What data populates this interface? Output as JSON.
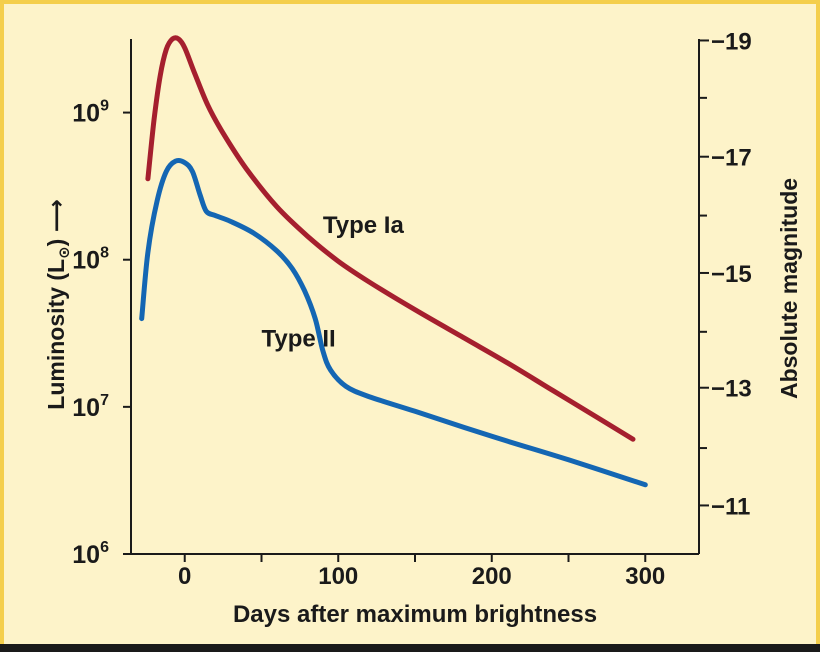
{
  "chart_data": {
    "type": "line",
    "xlabel": "Days after maximum brightness",
    "ylabel": "Luminosity (L",
    "ylabel_arrow": "⟶",
    "y2label": "Absolute magnitude",
    "sun_symbol": "⊙",
    "xlim": [
      -35,
      335
    ],
    "ylim_log10": [
      6,
      9.5
    ],
    "y_scale": "log",
    "grid": false,
    "x_ticks": [
      {
        "value": 0,
        "label": "0"
      },
      {
        "value": 100,
        "label": "100"
      },
      {
        "value": 200,
        "label": "200"
      },
      {
        "value": 300,
        "label": "300"
      }
    ],
    "x_minor_ticks": [
      50,
      150,
      250
    ],
    "y_ticks": [
      {
        "value": 1000000,
        "base": "10",
        "exp": "6"
      },
      {
        "value": 10000000,
        "base": "10",
        "exp": "7"
      },
      {
        "value": 100000000,
        "base": "10",
        "exp": "8"
      },
      {
        "value": 1000000000,
        "base": "10",
        "exp": "9"
      }
    ],
    "y2_ticks": [
      {
        "log10L": 9.49,
        "label": "−19"
      },
      {
        "log10L": 8.7,
        "label": "−17"
      },
      {
        "log10L": 7.91,
        "label": "−15"
      },
      {
        "log10L": 7.13,
        "label": "−13"
      },
      {
        "log10L": 6.33,
        "label": "−11"
      }
    ],
    "y2_minor_ticks": [
      9.1,
      8.3,
      7.51,
      6.72
    ],
    "series": [
      {
        "name": "Type Ia",
        "color": "#a51f2e",
        "label_at": {
          "x": 90,
          "log10L": 8.18
        },
        "points": [
          [
            -24,
            8.55
          ],
          [
            -20,
            8.95
          ],
          [
            -16,
            9.25
          ],
          [
            -12,
            9.43
          ],
          [
            -8,
            9.5
          ],
          [
            -4,
            9.5
          ],
          [
            0,
            9.44
          ],
          [
            6,
            9.28
          ],
          [
            15,
            9.05
          ],
          [
            25,
            8.86
          ],
          [
            40,
            8.62
          ],
          [
            60,
            8.36
          ],
          [
            80,
            8.16
          ],
          [
            100,
            7.99
          ],
          [
            120,
            7.85
          ],
          [
            150,
            7.66
          ],
          [
            180,
            7.48
          ],
          [
            210,
            7.3
          ],
          [
            240,
            7.11
          ],
          [
            270,
            6.92
          ],
          [
            292,
            6.78
          ]
        ]
      },
      {
        "name": "Type II",
        "color": "#1466b3",
        "label_at": {
          "x": 50,
          "log10L": 7.41
        },
        "points": [
          [
            -28,
            7.6
          ],
          [
            -24,
            8.05
          ],
          [
            -18,
            8.4
          ],
          [
            -12,
            8.6
          ],
          [
            -6,
            8.67
          ],
          [
            0,
            8.66
          ],
          [
            5,
            8.6
          ],
          [
            10,
            8.44
          ],
          [
            14,
            8.33
          ],
          [
            20,
            8.3
          ],
          [
            30,
            8.26
          ],
          [
            45,
            8.18
          ],
          [
            60,
            8.06
          ],
          [
            70,
            7.94
          ],
          [
            78,
            7.79
          ],
          [
            85,
            7.6
          ],
          [
            90,
            7.38
          ],
          [
            95,
            7.25
          ],
          [
            105,
            7.14
          ],
          [
            120,
            7.07
          ],
          [
            150,
            6.97
          ],
          [
            200,
            6.8
          ],
          [
            250,
            6.64
          ],
          [
            300,
            6.47
          ]
        ]
      }
    ]
  }
}
